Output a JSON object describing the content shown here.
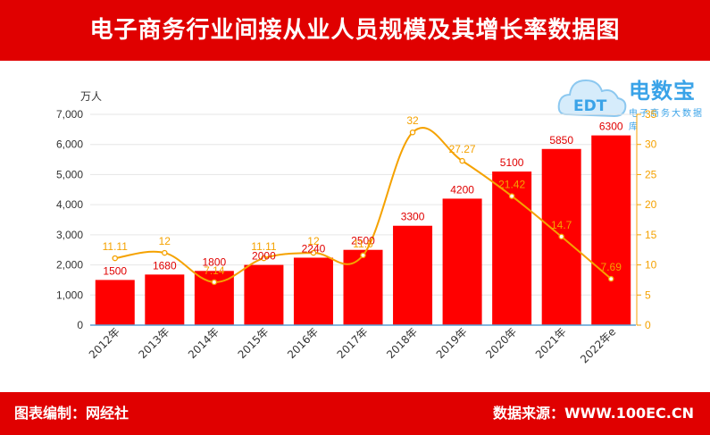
{
  "title": "电子商务行业间接从业人员规模及其增长率数据图",
  "footer": {
    "left": "图表编制：网经社",
    "right": "数据来源：WWW.100EC.CN"
  },
  "logo": {
    "main": "电数宝",
    "sub": "电子商务大数据库",
    "mark": "EDT"
  },
  "colors": {
    "bar": "#ff0000",
    "line": "#f5a200",
    "band": "#e00000"
  },
  "chart_data": {
    "type": "bar",
    "categories": [
      "2012年",
      "2013年",
      "2014年",
      "2015年",
      "2016年",
      "2017年",
      "2018年",
      "2019年",
      "2020年",
      "2021年",
      "2022年e"
    ],
    "series": [
      {
        "type": "bar",
        "axis": "left",
        "values": [
          1500,
          1680,
          1800,
          2000,
          2240,
          2500,
          3300,
          4200,
          5100,
          5850,
          6300
        ]
      },
      {
        "type": "line",
        "axis": "right",
        "values": [
          11.11,
          12,
          7.14,
          11.11,
          12,
          11.6,
          32,
          27.27,
          21.42,
          14.7,
          7.69
        ]
      }
    ],
    "y_left": {
      "unit": "万人",
      "min": 0,
      "max": 7000,
      "ticks": [
        0,
        1000,
        2000,
        3000,
        4000,
        5000,
        6000,
        7000
      ],
      "tick_labels": [
        "0",
        "1,000",
        "2,000",
        "3,000",
        "4,000",
        "5,000",
        "6,000",
        "7,000"
      ]
    },
    "y_right": {
      "min": 0,
      "max": 35,
      "ticks": [
        0,
        5,
        10,
        15,
        20,
        25,
        30,
        35
      ],
      "tick_labels": [
        "0",
        "5",
        "10",
        "15",
        "20",
        "25",
        "30",
        "35"
      ]
    },
    "bar_labels": [
      "1500",
      "1680",
      "1800",
      "2000",
      "2240",
      "2500",
      "3300",
      "4200",
      "5100",
      "5850",
      "6300"
    ],
    "line_labels": [
      "11.11",
      "12",
      "7.14",
      "11.11",
      "12",
      "11.6",
      "32",
      "27.27",
      "21.42",
      "14.7",
      "7.69"
    ]
  }
}
